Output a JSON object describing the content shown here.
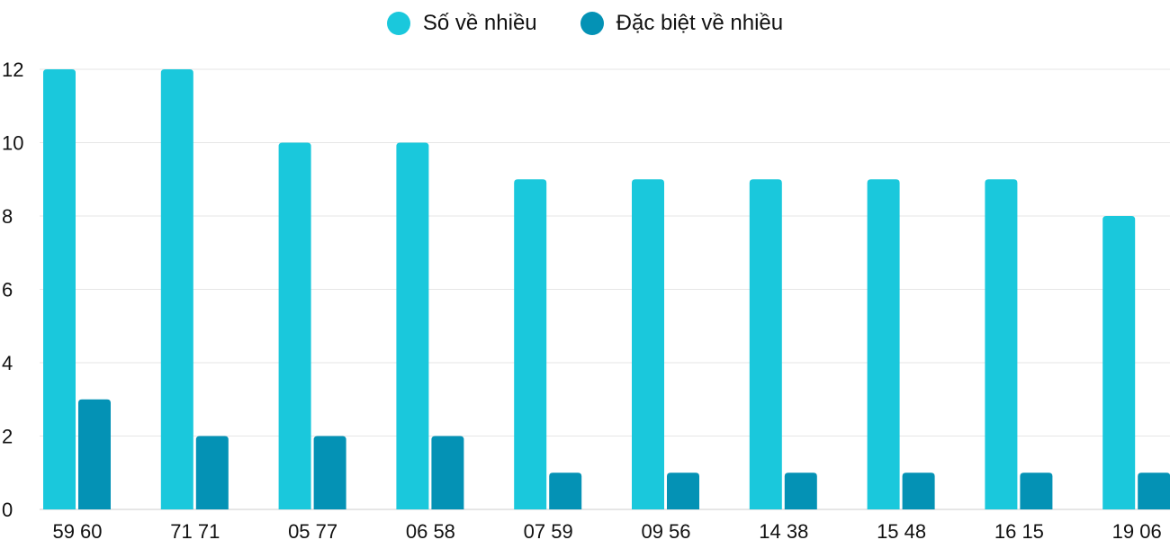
{
  "chart_data": {
    "type": "bar",
    "categories": [
      "59 60",
      "71 71",
      "05 77",
      "06 58",
      "07 59",
      "09 56",
      "14 38",
      "15 48",
      "16 15",
      "19 06"
    ],
    "series": [
      {
        "name": "Số về nhiều",
        "color": "#1ac8dc",
        "values": [
          12,
          12,
          10,
          10,
          9,
          9,
          9,
          9,
          9,
          8
        ]
      },
      {
        "name": "Đặc biệt về nhiều",
        "color": "#0492b5",
        "values": [
          3,
          2,
          2,
          2,
          1,
          1,
          1,
          1,
          1,
          1
        ]
      }
    ],
    "ylim": [
      0,
      12
    ],
    "yticks": [
      0,
      2,
      4,
      6,
      8,
      10,
      12
    ],
    "grid": true,
    "legend": "top-center"
  }
}
